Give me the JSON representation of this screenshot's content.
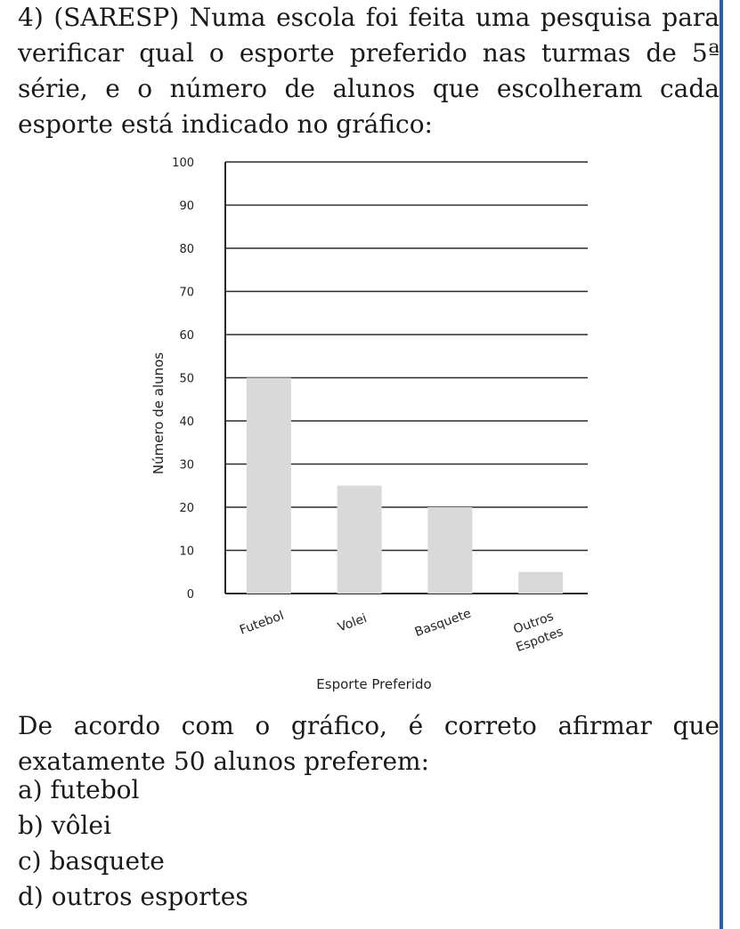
{
  "question": {
    "lines": [
      "4) (SARESP) Numa escola foi feita uma pesquisa para",
      "verificar qual o esporte preferido nas turmas de 5ª",
      "série, e o número de alunos que escolheram cada",
      "esporte está indicado no gráfico:"
    ]
  },
  "chart_data": {
    "type": "bar",
    "title": "",
    "categories": [
      "Futebol",
      "Volei",
      "Basquete",
      "Outros Espotes"
    ],
    "category_lines": [
      [
        "Futebol"
      ],
      [
        "Volei"
      ],
      [
        "Basquete"
      ],
      [
        "Outros",
        "Espotes"
      ]
    ],
    "values": [
      50,
      25,
      20,
      5
    ],
    "xlabel": "Esporte Preferido",
    "ylabel": "Número de alunos",
    "ylim": [
      0,
      100
    ],
    "yticks": [
      0,
      10,
      20,
      30,
      40,
      50,
      60,
      70,
      80,
      90,
      100
    ],
    "grid": true,
    "bar_color": "#d9d9d9",
    "grid_color": "#2a2a2a"
  },
  "after": {
    "line1": "De acordo com o gráfico, é correto afirmar que",
    "line2": "exatamente 50 alunos preferem:"
  },
  "options": [
    "a) futebol",
    "b) vôlei",
    "c) basquete",
    "d) outros esportes"
  ]
}
